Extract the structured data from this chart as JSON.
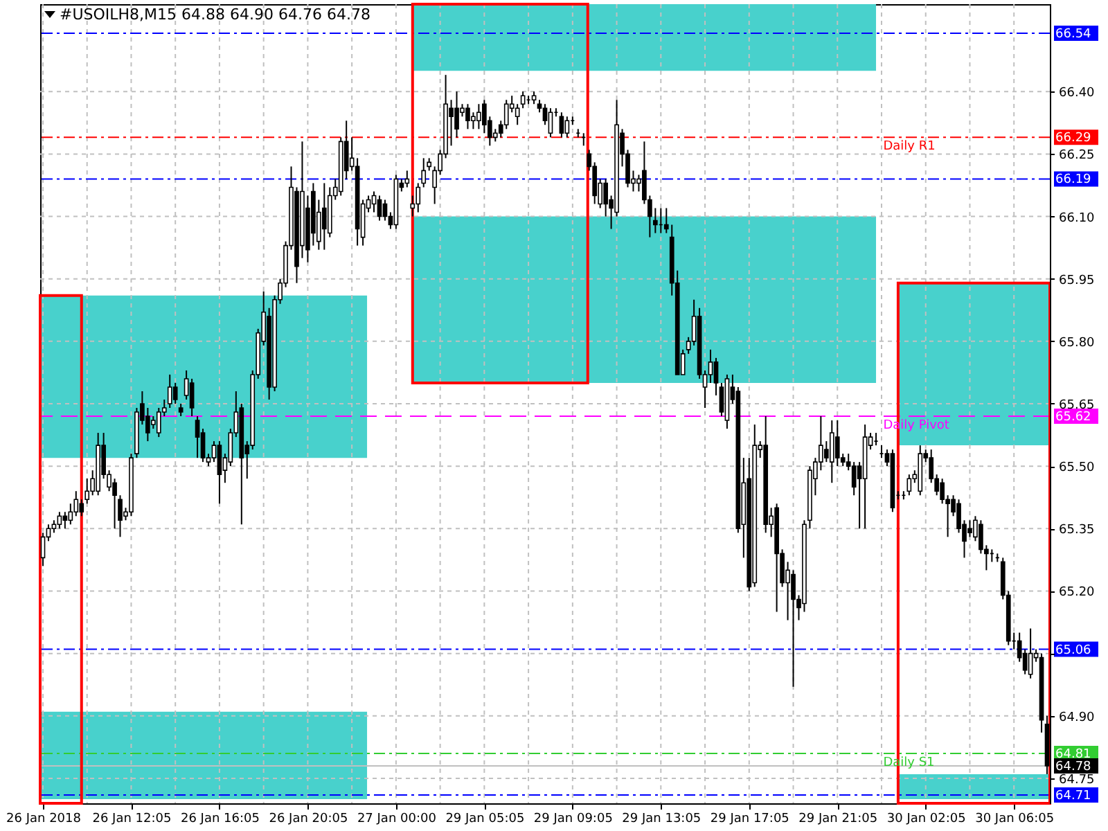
{
  "chart_data": {
    "type": "candlestick",
    "title": "#USOILH8,M15  64.88 64.90 64.76 64.78",
    "color": "#000000",
    "categories": [
      "26 Jan 2018",
      null,
      null,
      null,
      null,
      null,
      null,
      null,
      null,
      null,
      null,
      null,
      null,
      null,
      null,
      null,
      "26 Jan 12:05",
      null,
      null,
      null,
      null,
      null,
      null,
      null,
      null,
      null,
      null,
      null,
      null,
      null,
      null,
      null,
      "26 Jan 16:05",
      null,
      null,
      null,
      null,
      null,
      null,
      null,
      null,
      null,
      null,
      null,
      null,
      null,
      null,
      null,
      "26 Jan 20:05",
      null,
      null,
      null,
      null,
      null,
      null,
      null,
      null,
      null,
      null,
      null,
      null,
      null,
      null,
      null,
      "27 Jan 00:00",
      null,
      null,
      null,
      null,
      null,
      null,
      null,
      null,
      null,
      null,
      null,
      null,
      null,
      null,
      null,
      "29 Jan 05:05",
      null,
      null,
      null,
      null,
      null,
      null,
      null,
      null,
      null,
      null,
      null,
      null,
      null,
      null,
      null,
      "29 Jan 09:05",
      null,
      null,
      null,
      null,
      null,
      null,
      null,
      null,
      null,
      null,
      null,
      null,
      null,
      null,
      null,
      "29 Jan 13:05",
      null,
      null,
      null,
      null,
      null,
      null,
      null,
      null,
      null,
      null,
      null,
      null,
      null,
      null,
      null,
      "29 Jan 17:05",
      null,
      null,
      null,
      null,
      null,
      null,
      null,
      null,
      null,
      null,
      null,
      null,
      null,
      null,
      null,
      "29 Jan 21:05",
      null,
      null,
      null,
      null,
      null,
      null,
      null,
      null,
      null,
      null,
      null,
      null,
      null,
      null,
      null,
      "30 Jan 02:05",
      null,
      null,
      null,
      null,
      null,
      null,
      null,
      null,
      null,
      null,
      null,
      null,
      null,
      null,
      null,
      "30 Jan 06:05",
      null,
      null,
      null,
      null,
      null,
      null
    ],
    "ohlc": [
      [
        65.28,
        65.34,
        65.26,
        65.33
      ],
      [
        65.33,
        65.36,
        65.32,
        65.35
      ],
      [
        65.35,
        65.37,
        65.34,
        65.36
      ],
      [
        65.36,
        65.39,
        65.35,
        65.38
      ],
      [
        65.38,
        65.39,
        65.35,
        65.37
      ],
      [
        65.37,
        65.41,
        65.36,
        65.39
      ],
      [
        65.39,
        65.44,
        65.38,
        65.42
      ],
      [
        65.41,
        65.42,
        65.38,
        65.39
      ],
      [
        65.42,
        65.47,
        65.41,
        65.44
      ],
      [
        65.44,
        65.49,
        65.43,
        65.47
      ],
      [
        65.44,
        65.58,
        65.43,
        65.55
      ],
      [
        65.55,
        65.58,
        65.47,
        65.48
      ],
      [
        65.45,
        65.49,
        65.44,
        65.48
      ],
      [
        65.46,
        65.47,
        65.35,
        65.43
      ],
      [
        65.42,
        65.43,
        65.33,
        65.37
      ],
      [
        65.38,
        65.4,
        65.37,
        65.39
      ],
      [
        65.39,
        65.53,
        65.38,
        65.52
      ],
      [
        65.53,
        65.64,
        65.52,
        65.63
      ],
      [
        65.65,
        65.68,
        65.6,
        65.61
      ],
      [
        65.62,
        65.64,
        65.56,
        65.58
      ],
      [
        65.6,
        65.62,
        65.59,
        65.61
      ],
      [
        65.58,
        65.64,
        65.57,
        65.63
      ],
      [
        65.63,
        65.66,
        65.62,
        65.64
      ],
      [
        65.65,
        65.72,
        65.64,
        65.69
      ],
      [
        65.69,
        65.7,
        65.65,
        65.66
      ],
      [
        65.64,
        65.65,
        65.62,
        65.63
      ],
      [
        65.67,
        65.73,
        65.66,
        65.71
      ],
      [
        65.7,
        65.71,
        65.62,
        65.64
      ],
      [
        65.61,
        65.62,
        65.52,
        65.57
      ],
      [
        65.58,
        65.59,
        65.51,
        65.52
      ],
      [
        65.51,
        65.53,
        65.5,
        65.52
      ],
      [
        65.52,
        65.56,
        65.51,
        65.55
      ],
      [
        65.55,
        65.56,
        65.41,
        65.48
      ],
      [
        65.49,
        65.53,
        65.46,
        65.52
      ],
      [
        65.51,
        65.59,
        65.5,
        65.58
      ],
      [
        65.58,
        65.68,
        65.57,
        65.63
      ],
      [
        65.64,
        65.65,
        65.36,
        65.52
      ],
      [
        65.55,
        65.56,
        65.47,
        65.53
      ],
      [
        65.55,
        65.73,
        65.54,
        65.72
      ],
      [
        65.72,
        65.83,
        65.71,
        65.82
      ],
      [
        65.8,
        65.92,
        65.79,
        65.87
      ],
      [
        65.86,
        65.88,
        65.66,
        65.69
      ],
      [
        65.69,
        65.91,
        65.68,
        65.9
      ],
      [
        65.9,
        65.95,
        65.89,
        65.94
      ],
      [
        65.94,
        66.04,
        65.93,
        66.03
      ],
      [
        66.03,
        66.22,
        66.02,
        66.17
      ],
      [
        66.16,
        66.17,
        65.94,
        65.98
      ],
      [
        66.03,
        66.28,
        66.0,
        66.16
      ],
      [
        66.12,
        66.15,
        65.99,
        66.02
      ],
      [
        66.16,
        66.18,
        66.03,
        66.06
      ],
      [
        66.04,
        66.14,
        66.02,
        66.11
      ],
      [
        66.12,
        66.18,
        66.02,
        66.07
      ],
      [
        66.06,
        66.17,
        66.05,
        66.15
      ],
      [
        66.15,
        66.19,
        66.14,
        66.17
      ],
      [
        66.16,
        66.29,
        66.15,
        66.28
      ],
      [
        66.28,
        66.33,
        66.19,
        66.21
      ],
      [
        66.22,
        66.29,
        66.21,
        66.24
      ],
      [
        66.22,
        66.24,
        66.03,
        66.07
      ],
      [
        66.05,
        66.14,
        66.03,
        66.13
      ],
      [
        66.12,
        66.15,
        66.11,
        66.14
      ],
      [
        66.13,
        66.16,
        66.11,
        66.15
      ],
      [
        66.14,
        66.15,
        66.09,
        66.1
      ],
      [
        66.13,
        66.14,
        66.09,
        66.1
      ],
      [
        66.1,
        66.11,
        66.07,
        66.08
      ],
      [
        66.08,
        66.2,
        66.07,
        66.19
      ],
      [
        66.18,
        66.19,
        66.16,
        66.17
      ],
      [
        66.18,
        66.21,
        66.17,
        66.19
      ],
      [
        66.12,
        66.15,
        66.1,
        66.13
      ],
      [
        66.13,
        66.18,
        66.11,
        66.17
      ],
      [
        66.18,
        66.24,
        66.17,
        66.21
      ],
      [
        66.22,
        66.24,
        66.21,
        66.23
      ],
      [
        66.17,
        66.22,
        66.13,
        66.21
      ],
      [
        66.21,
        66.26,
        66.2,
        66.25
      ],
      [
        66.25,
        66.44,
        66.24,
        66.37
      ],
      [
        66.36,
        66.38,
        66.27,
        66.34
      ],
      [
        66.36,
        66.4,
        66.29,
        66.31
      ],
      [
        66.35,
        66.37,
        66.34,
        66.36
      ],
      [
        66.36,
        66.37,
        66.31,
        66.33
      ],
      [
        66.33,
        66.35,
        66.31,
        66.34
      ],
      [
        66.33,
        66.37,
        66.31,
        66.35
      ],
      [
        66.37,
        66.38,
        66.3,
        66.32
      ],
      [
        66.33,
        66.34,
        66.27,
        66.29
      ],
      [
        66.29,
        66.31,
        66.28,
        66.3
      ],
      [
        66.32,
        66.33,
        66.29,
        66.3
      ],
      [
        66.32,
        66.38,
        66.31,
        66.37
      ],
      [
        66.36,
        66.39,
        66.35,
        66.37
      ],
      [
        66.34,
        66.37,
        66.32,
        66.36
      ],
      [
        66.37,
        66.4,
        66.36,
        66.39
      ],
      [
        66.38,
        66.39,
        66.37,
        66.38
      ],
      [
        66.38,
        66.4,
        66.37,
        66.39
      ],
      [
        66.37,
        66.38,
        66.35,
        66.36
      ],
      [
        66.36,
        66.37,
        66.32,
        66.33
      ],
      [
        66.3,
        66.36,
        66.29,
        66.35
      ],
      [
        66.35,
        66.36,
        66.34,
        66.35
      ],
      [
        66.34,
        66.35,
        66.29,
        66.3
      ],
      [
        66.3,
        66.34,
        66.29,
        66.33
      ],
      [
        66.33,
        66.34,
        66.32,
        66.33
      ],
      [
        66.3,
        66.31,
        66.29,
        66.3
      ],
      [
        66.29,
        66.3,
        66.27,
        66.29
      ],
      [
        66.25,
        66.26,
        66.21,
        66.22
      ],
      [
        66.22,
        66.23,
        66.13,
        66.15
      ],
      [
        66.13,
        66.19,
        66.12,
        66.18
      ],
      [
        66.18,
        66.19,
        66.1,
        66.13
      ],
      [
        66.14,
        66.15,
        66.07,
        66.12
      ],
      [
        66.11,
        66.38,
        66.1,
        66.32
      ],
      [
        66.3,
        66.31,
        66.22,
        66.25
      ],
      [
        66.25,
        66.26,
        66.17,
        66.18
      ],
      [
        66.18,
        66.21,
        66.16,
        66.19
      ],
      [
        66.18,
        66.2,
        66.16,
        66.19
      ],
      [
        66.21,
        66.28,
        66.13,
        66.14
      ],
      [
        66.14,
        66.15,
        66.05,
        66.1
      ],
      [
        66.09,
        66.12,
        66.06,
        66.08
      ],
      [
        66.08,
        66.12,
        66.06,
        66.08
      ],
      [
        66.08,
        66.12,
        66.06,
        66.07
      ],
      [
        66.05,
        66.08,
        65.91,
        65.94
      ],
      [
        65.94,
        65.97,
        65.72,
        65.72
      ],
      [
        65.72,
        65.78,
        65.72,
        65.77
      ],
      [
        65.78,
        65.81,
        65.77,
        65.8
      ],
      [
        65.8,
        65.9,
        65.79,
        65.86
      ],
      [
        65.86,
        65.88,
        65.71,
        65.72
      ],
      [
        65.69,
        65.73,
        65.64,
        65.72
      ],
      [
        65.72,
        65.78,
        65.7,
        65.75
      ],
      [
        65.75,
        65.76,
        65.67,
        65.7
      ],
      [
        65.69,
        65.7,
        65.62,
        65.63
      ],
      [
        65.61,
        65.72,
        65.59,
        65.71
      ],
      [
        65.69,
        65.72,
        65.65,
        65.66
      ],
      [
        65.68,
        65.69,
        65.34,
        65.35
      ],
      [
        65.36,
        65.52,
        65.28,
        65.46
      ],
      [
        65.47,
        65.52,
        65.2,
        65.21
      ],
      [
        65.22,
        65.6,
        65.21,
        65.55
      ],
      [
        65.54,
        65.56,
        65.52,
        65.55
      ],
      [
        65.55,
        65.62,
        65.34,
        65.36
      ],
      [
        65.36,
        65.4,
        65.33,
        65.38
      ],
      [
        65.4,
        65.41,
        65.15,
        65.29
      ],
      [
        65.29,
        65.3,
        65.21,
        65.22
      ],
      [
        65.22,
        65.27,
        65.13,
        65.25
      ],
      [
        65.24,
        65.25,
        64.97,
        65.18
      ],
      [
        65.18,
        65.19,
        65.13,
        65.16
      ],
      [
        65.17,
        65.37,
        65.15,
        65.36
      ],
      [
        65.37,
        65.5,
        65.35,
        65.49
      ],
      [
        65.47,
        65.52,
        65.43,
        65.51
      ],
      [
        65.51,
        65.62,
        65.49,
        65.55
      ],
      [
        65.54,
        65.56,
        65.51,
        65.52
      ],
      [
        65.51,
        65.61,
        65.46,
        65.58
      ],
      [
        65.57,
        65.61,
        65.5,
        65.52
      ],
      [
        65.52,
        65.53,
        65.5,
        65.51
      ],
      [
        65.51,
        65.53,
        65.49,
        65.5
      ],
      [
        65.5,
        65.51,
        65.43,
        65.45
      ],
      [
        65.5,
        65.51,
        65.35,
        65.47
      ],
      [
        65.47,
        65.6,
        65.35,
        65.57
      ],
      [
        65.55,
        65.58,
        65.54,
        65.57
      ],
      [
        65.56,
        65.58,
        65.55,
        65.56
      ],
      [
        65.53,
        65.55,
        65.52,
        65.53
      ],
      [
        65.53,
        65.54,
        65.5,
        65.51
      ],
      [
        65.53,
        65.54,
        65.39,
        65.4
      ],
      [
        65.43,
        65.44,
        65.42,
        65.43
      ],
      [
        65.43,
        65.44,
        65.42,
        65.43
      ],
      [
        65.44,
        65.48,
        65.43,
        65.47
      ],
      [
        65.47,
        65.49,
        65.46,
        65.48
      ],
      [
        65.44,
        65.55,
        65.43,
        65.53
      ],
      [
        65.53,
        65.54,
        65.51,
        65.52
      ],
      [
        65.52,
        65.54,
        65.46,
        65.47
      ],
      [
        65.47,
        65.48,
        65.43,
        65.44
      ],
      [
        65.46,
        65.47,
        65.41,
        65.42
      ],
      [
        65.42,
        65.43,
        65.33,
        65.41
      ],
      [
        65.42,
        65.43,
        65.38,
        65.39
      ],
      [
        65.41,
        65.42,
        65.34,
        65.35
      ],
      [
        65.36,
        65.37,
        65.28,
        65.32
      ],
      [
        65.35,
        65.37,
        65.33,
        65.34
      ],
      [
        65.33,
        65.38,
        65.32,
        65.37
      ],
      [
        65.36,
        65.37,
        65.29,
        65.3
      ],
      [
        65.3,
        65.31,
        65.25,
        65.29
      ],
      [
        65.29,
        65.3,
        65.27,
        65.29
      ],
      [
        65.28,
        65.29,
        65.27,
        65.28
      ],
      [
        65.27,
        65.28,
        65.18,
        65.19
      ],
      [
        65.19,
        65.2,
        65.07,
        65.08
      ],
      [
        65.08,
        65.1,
        65.06,
        65.08
      ],
      [
        65.08,
        65.1,
        65.03,
        65.04
      ],
      [
        65.05,
        65.06,
        65.0,
        65.01
      ],
      [
        65.0,
        65.11,
        64.99,
        65.05
      ],
      [
        65.04,
        65.06,
        65.03,
        65.05
      ],
      [
        65.04,
        65.05,
        64.86,
        64.89
      ],
      [
        64.88,
        64.9,
        64.76,
        64.78
      ]
    ],
    "ylim": [
      64.69,
      66.61
    ],
    "yticks": [
      {
        "value": 64.75,
        "label": "64.75"
      },
      {
        "value": 64.9,
        "label": "64.90"
      },
      {
        "value": 65.05,
        "label": null
      },
      {
        "value": 65.2,
        "label": "65.20"
      },
      {
        "value": 65.35,
        "label": "65.35"
      },
      {
        "value": 65.5,
        "label": "65.50"
      },
      {
        "value": 65.65,
        "label": "65.65"
      },
      {
        "value": 65.8,
        "label": "65.80"
      },
      {
        "value": 65.95,
        "label": "65.95"
      },
      {
        "value": 66.1,
        "label": "66.10"
      },
      {
        "value": 66.25,
        "label": "66.25"
      },
      {
        "value": 66.4,
        "label": "66.40"
      }
    ],
    "annotations": [
      "66.54",
      "66.29",
      "66.19",
      "65.62",
      "65.06",
      "64.81",
      "64.78",
      "64.71"
    ],
    "grid": true,
    "bands": [
      {
        "axis": "y",
        "from": 65.52,
        "to": 65.91,
        "color": "#48d1cc"
      },
      {
        "axis": "y",
        "from": 64.7,
        "to": 64.91,
        "color": "#48d1cc"
      },
      {
        "axis": "y",
        "from": 66.45,
        "to": 66.61,
        "color": "#48d1cc"
      },
      {
        "axis": "y",
        "from": 65.7,
        "to": 66.1,
        "color": "#48d1cc"
      },
      {
        "axis": "y",
        "from": 65.55,
        "to": 65.94,
        "color": "#48d1cc"
      },
      {
        "axis": "y",
        "from": 64.7,
        "to": 64.76,
        "color": "#48d1cc"
      }
    ],
    "ref_lines": [
      {
        "axis": "y",
        "value": 66.54,
        "color": "#0000ff",
        "line_style": "dashdot"
      },
      {
        "axis": "y",
        "value": 66.29,
        "label": "Daily R1",
        "color": "#ff0000",
        "line_style": "dashdot"
      },
      {
        "axis": "y",
        "value": 66.19,
        "color": "#0000ff",
        "line_style": "dashdot"
      },
      {
        "axis": "y",
        "value": 65.62,
        "label": "Daily Pivot",
        "color": "#ff00ff",
        "line_style": "dashed"
      },
      {
        "axis": "y",
        "value": 65.06,
        "color": "#0000ff",
        "line_style": "dashdot"
      },
      {
        "axis": "y",
        "value": 64.81,
        "label": "Daily S1",
        "color": "#32cd32",
        "line_style": "dashdot"
      },
      {
        "axis": "y",
        "value": 64.78,
        "color": "#c0c0c0",
        "line_style": "solid"
      },
      {
        "axis": "y",
        "value": 64.71,
        "color": "#0000ff",
        "line_style": "dashdot"
      }
    ]
  }
}
